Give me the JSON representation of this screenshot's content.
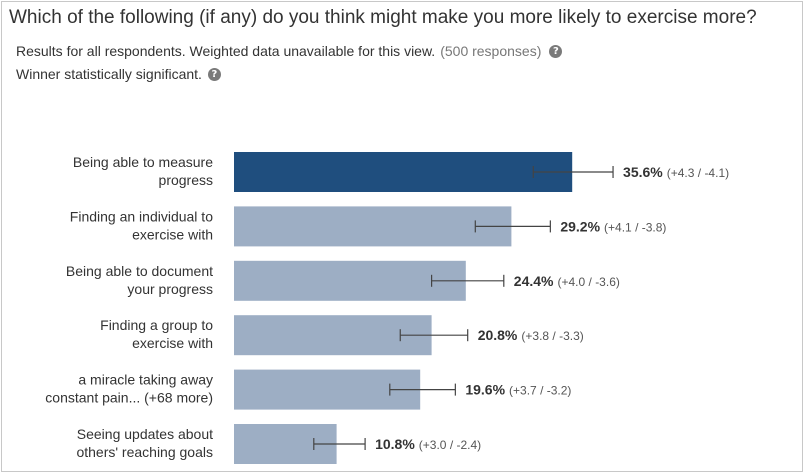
{
  "header": {
    "title": "Which of the following (if any) do you think might make you more likely to exercise more?",
    "results_note": "Results for all respondents. Weighted data unavailable for this view.",
    "responses_note": "(500 responses)",
    "significance_note": "Winner statistically significant.",
    "help_icon": "question-mark-icon"
  },
  "colors": {
    "winner_bar": "#1f4e7e",
    "bar": "#9daec4",
    "error_bar": "#444444"
  },
  "chart_data": {
    "type": "bar",
    "orientation": "horizontal",
    "title": "Which of the following (if any) do you think might make you more likely to exercise more?",
    "xlim": [
      0,
      40
    ],
    "grid": false,
    "legend": "none",
    "categories": [
      [
        "Being able to measure",
        "progress"
      ],
      [
        "Finding an individual to",
        "exercise with"
      ],
      [
        "Being able to document",
        "your progress"
      ],
      [
        "Finding a group to",
        "exercise with"
      ],
      [
        "a miracle taking away",
        "constant pain... (+68 more)"
      ],
      [
        "Seeing updates about",
        "others' reaching goals"
      ]
    ],
    "values": [
      35.6,
      29.2,
      24.4,
      20.8,
      19.6,
      10.8
    ],
    "value_labels": [
      "35.6%",
      "29.2%",
      "24.4%",
      "20.8%",
      "19.6%",
      "10.8%"
    ],
    "ci_plus": [
      4.3,
      4.1,
      4.0,
      3.8,
      3.7,
      3.0
    ],
    "ci_minus": [
      4.1,
      3.8,
      3.6,
      3.3,
      3.2,
      2.4
    ],
    "ci_labels": [
      "(+4.3 / -4.1)",
      "(+4.1 / -3.8)",
      "(+4.0 / -3.6)",
      "(+3.8 / -3.3)",
      "(+3.7 / -3.2)",
      "(+3.0 / -2.4)"
    ],
    "winner_index": 0
  }
}
